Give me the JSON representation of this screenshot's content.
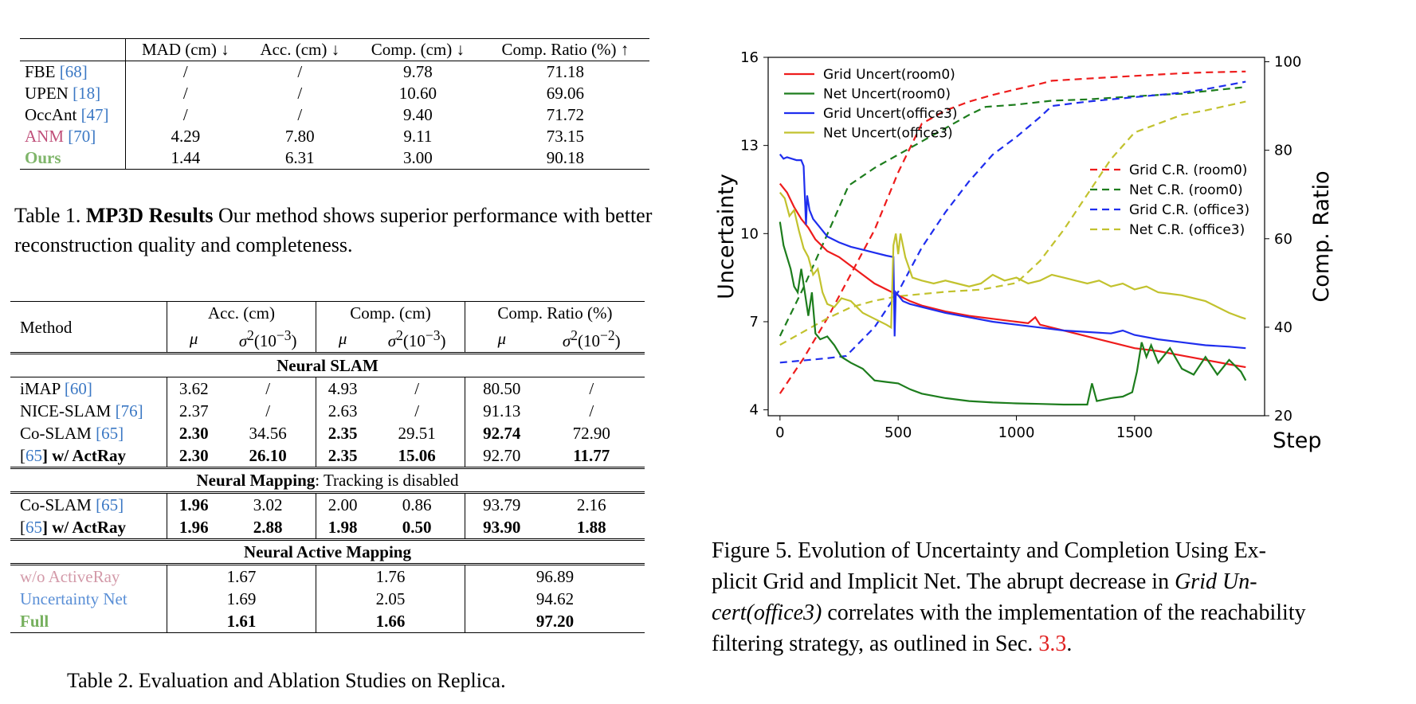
{
  "table1": {
    "headers": [
      "",
      "MAD (cm) ↓",
      "Acc. (cm) ↓",
      "Comp. (cm) ↓",
      "Comp. Ratio (%) ↑"
    ],
    "rows": [
      {
        "method": "FBE ",
        "ref": "[68]",
        "vals": [
          "/",
          "/",
          "9.78",
          "71.18"
        ]
      },
      {
        "method": "UPEN ",
        "ref": "[18]",
        "vals": [
          "/",
          "/",
          "10.60",
          "69.06"
        ]
      },
      {
        "method": "OccAnt ",
        "ref": "[47]",
        "vals": [
          "/",
          "/",
          "9.40",
          "71.72"
        ]
      },
      {
        "method": "ANM ",
        "ref": "[70]",
        "vals": [
          "4.29",
          "7.80",
          "9.11",
          "73.15"
        ]
      },
      {
        "method": "Ours",
        "ref": "",
        "vals": [
          "1.44",
          "6.31",
          "3.00",
          "90.18"
        ]
      }
    ],
    "caption_label": "Table 1. ",
    "caption_bold": "MP3D Results",
    "caption_text": " Our method shows superior performance with better reconstruction quality and completeness."
  },
  "table2": {
    "header": {
      "method": "Method",
      "acc": "Acc. (cm)",
      "comp": "Comp. (cm)",
      "ratio": "Comp. Ratio (%)",
      "mu": "μ",
      "sigma": "σ",
      "sq": "2",
      "exp3": "(10",
      "exp3b": "−3",
      "exp2b": "−2",
      "close": ")"
    },
    "sec1": "Neural SLAM",
    "sec1_rows": [
      {
        "method": "iMAP ",
        "ref": "[60]",
        "suffix": "",
        "vals": [
          "3.62",
          "/",
          "4.93",
          "/",
          "80.50",
          "/"
        ]
      },
      {
        "method": "NICE-SLAM ",
        "ref": "[76]",
        "suffix": "",
        "vals": [
          "2.37",
          "/",
          "2.63",
          "/",
          "91.13",
          "/"
        ]
      },
      {
        "method": "Co-SLAM ",
        "ref": "[65]",
        "suffix": "",
        "vals": [
          "2.30",
          "34.56",
          "2.35",
          "29.51",
          "92.74",
          "72.90"
        ]
      },
      {
        "method": "[",
        "ref": "65",
        "suffix": "] w/ ActRay",
        "vals": [
          "2.30",
          "26.10",
          "2.35",
          "15.06",
          "92.70",
          "11.77"
        ]
      }
    ],
    "sec2_bold": "Neural Mapping",
    "sec2_rest": ": Tracking is disabled",
    "sec2_rows": [
      {
        "method": "Co-SLAM ",
        "ref": "[65]",
        "suffix": "",
        "vals": [
          "1.96",
          "3.02",
          "2.00",
          "0.86",
          "93.79",
          "2.16"
        ]
      },
      {
        "method": "[",
        "ref": "65",
        "suffix": "] w/ ActRay",
        "vals": [
          "1.96",
          "2.88",
          "1.98",
          "0.50",
          "93.90",
          "1.88"
        ]
      }
    ],
    "sec3": "Neural Active Mapping",
    "sec3_rows": [
      {
        "method": "w/o ActiveRay",
        "vals": [
          "1.67",
          "1.76",
          "96.89"
        ]
      },
      {
        "method": "Uncertainty Net",
        "vals": [
          "1.69",
          "2.05",
          "94.62"
        ]
      },
      {
        "method": "Full",
        "vals": [
          "1.61",
          "1.66",
          "97.20"
        ]
      }
    ],
    "caption": "Table 2. Evaluation and Ablation Studies on Replica."
  },
  "figure5": {
    "caption_lines": [
      "Figure 5.  Evolution of Uncertainty and Completion Using Ex-",
      "plicit Grid and Implicit Net.  The abrupt decrease in ",
      "Grid Un-",
      "cert(office3)",
      " correlates with the implementation of the reachability",
      "filtering strategy, as outlined in Sec. ",
      "3.3",
      "."
    ]
  },
  "chart_data": {
    "type": "line",
    "xlabel": "Step",
    "ylabel": "Uncertainty",
    "y2label": "Comp. Ratio",
    "xlim": [
      -50,
      2050
    ],
    "ylim": [
      3.8,
      16.0
    ],
    "y2lim": [
      20,
      101
    ],
    "xticks": [
      0,
      500,
      1000,
      1500
    ],
    "yticks": [
      4,
      7,
      10,
      13,
      16
    ],
    "y2ticks": [
      20,
      40,
      60,
      80,
      100
    ],
    "legend_left_position": "top-left",
    "legend_right_position": "center-right",
    "colors": {
      "room0_grid": "#ee1c1c",
      "room0_net": "#1d7d1d",
      "office3_grid": "#1f2eee",
      "office3_net": "#c2c22e"
    },
    "uncertainty_series": [
      {
        "name": "Grid Uncert(room0)",
        "color": "#ee1c1c",
        "points": [
          [
            0,
            11.7
          ],
          [
            30,
            11.4
          ],
          [
            60,
            10.9
          ],
          [
            90,
            10.5
          ],
          [
            120,
            10.2
          ],
          [
            150,
            9.8
          ],
          [
            200,
            9.4
          ],
          [
            250,
            9.2
          ],
          [
            300,
            8.9
          ],
          [
            350,
            8.6
          ],
          [
            400,
            8.3
          ],
          [
            450,
            8.1
          ],
          [
            500,
            7.9
          ],
          [
            550,
            7.7
          ],
          [
            600,
            7.55
          ],
          [
            700,
            7.35
          ],
          [
            800,
            7.2
          ],
          [
            900,
            7.1
          ],
          [
            1000,
            7.0
          ],
          [
            1050,
            6.95
          ],
          [
            1080,
            7.15
          ],
          [
            1100,
            6.9
          ],
          [
            1200,
            6.7
          ],
          [
            1300,
            6.5
          ],
          [
            1400,
            6.3
          ],
          [
            1500,
            6.1
          ],
          [
            1600,
            6.0
          ],
          [
            1700,
            5.85
          ],
          [
            1800,
            5.7
          ],
          [
            1900,
            5.55
          ],
          [
            1970,
            5.45
          ]
        ]
      },
      {
        "name": "Net Uncert(room0)",
        "color": "#1d7d1d",
        "points": [
          [
            0,
            10.4
          ],
          [
            15,
            9.6
          ],
          [
            30,
            9.2
          ],
          [
            45,
            8.8
          ],
          [
            60,
            8.2
          ],
          [
            75,
            8.0
          ],
          [
            90,
            8.8
          ],
          [
            105,
            8.0
          ],
          [
            120,
            7.2
          ],
          [
            135,
            8.0
          ],
          [
            150,
            6.6
          ],
          [
            170,
            6.4
          ],
          [
            200,
            6.5
          ],
          [
            230,
            6.2
          ],
          [
            260,
            5.8
          ],
          [
            300,
            5.6
          ],
          [
            350,
            5.4
          ],
          [
            400,
            5.0
          ],
          [
            450,
            4.95
          ],
          [
            500,
            4.9
          ],
          [
            550,
            4.7
          ],
          [
            600,
            4.55
          ],
          [
            700,
            4.4
          ],
          [
            800,
            4.3
          ],
          [
            900,
            4.25
          ],
          [
            1000,
            4.22
          ],
          [
            1100,
            4.2
          ],
          [
            1200,
            4.18
          ],
          [
            1300,
            4.18
          ],
          [
            1320,
            4.9
          ],
          [
            1340,
            4.3
          ],
          [
            1400,
            4.4
          ],
          [
            1450,
            4.45
          ],
          [
            1490,
            4.6
          ],
          [
            1510,
            5.3
          ],
          [
            1530,
            6.3
          ],
          [
            1550,
            5.8
          ],
          [
            1570,
            6.2
          ],
          [
            1600,
            5.6
          ],
          [
            1650,
            6.1
          ],
          [
            1700,
            5.4
          ],
          [
            1750,
            5.2
          ],
          [
            1800,
            5.8
          ],
          [
            1850,
            5.2
          ],
          [
            1900,
            5.7
          ],
          [
            1950,
            5.3
          ],
          [
            1970,
            5.0
          ]
        ]
      },
      {
        "name": "Grid Uncert(office3)",
        "color": "#1f2eee",
        "points": [
          [
            0,
            12.7
          ],
          [
            15,
            12.55
          ],
          [
            30,
            12.6
          ],
          [
            50,
            12.55
          ],
          [
            70,
            12.5
          ],
          [
            90,
            12.5
          ],
          [
            100,
            12.3
          ],
          [
            110,
            10.3
          ],
          [
            115,
            11.3
          ],
          [
            125,
            10.8
          ],
          [
            140,
            10.5
          ],
          [
            170,
            10.2
          ],
          [
            200,
            9.9
          ],
          [
            250,
            9.7
          ],
          [
            300,
            9.55
          ],
          [
            350,
            9.45
          ],
          [
            400,
            9.35
          ],
          [
            450,
            9.25
          ],
          [
            480,
            9.2
          ],
          [
            485,
            6.5
          ],
          [
            490,
            8.0
          ],
          [
            520,
            7.7
          ],
          [
            550,
            7.6
          ],
          [
            600,
            7.5
          ],
          [
            700,
            7.3
          ],
          [
            800,
            7.15
          ],
          [
            900,
            7.0
          ],
          [
            1000,
            6.9
          ],
          [
            1100,
            6.8
          ],
          [
            1200,
            6.7
          ],
          [
            1300,
            6.65
          ],
          [
            1400,
            6.6
          ],
          [
            1450,
            6.7
          ],
          [
            1500,
            6.55
          ],
          [
            1600,
            6.4
          ],
          [
            1700,
            6.3
          ],
          [
            1800,
            6.2
          ],
          [
            1900,
            6.15
          ],
          [
            1970,
            6.1
          ]
        ]
      },
      {
        "name": "Net Uncert(office3)",
        "color": "#c2c22e",
        "points": [
          [
            0,
            11.4
          ],
          [
            20,
            11.2
          ],
          [
            40,
            10.6
          ],
          [
            60,
            10.8
          ],
          [
            80,
            10.1
          ],
          [
            100,
            9.5
          ],
          [
            120,
            9.2
          ],
          [
            140,
            8.6
          ],
          [
            160,
            8.8
          ],
          [
            180,
            8.0
          ],
          [
            200,
            7.6
          ],
          [
            230,
            7.5
          ],
          [
            260,
            7.8
          ],
          [
            300,
            7.7
          ],
          [
            350,
            7.3
          ],
          [
            400,
            7.1
          ],
          [
            450,
            6.9
          ],
          [
            470,
            6.8
          ],
          [
            480,
            9.6
          ],
          [
            490,
            10.0
          ],
          [
            500,
            9.3
          ],
          [
            510,
            10.0
          ],
          [
            530,
            9.2
          ],
          [
            560,
            8.5
          ],
          [
            600,
            8.4
          ],
          [
            650,
            8.3
          ],
          [
            700,
            8.4
          ],
          [
            750,
            8.3
          ],
          [
            800,
            8.2
          ],
          [
            850,
            8.3
          ],
          [
            900,
            8.6
          ],
          [
            950,
            8.4
          ],
          [
            1000,
            8.5
          ],
          [
            1050,
            8.3
          ],
          [
            1100,
            8.4
          ],
          [
            1150,
            8.6
          ],
          [
            1200,
            8.5
          ],
          [
            1250,
            8.4
          ],
          [
            1300,
            8.3
          ],
          [
            1350,
            8.4
          ],
          [
            1400,
            8.2
          ],
          [
            1450,
            8.3
          ],
          [
            1500,
            8.1
          ],
          [
            1550,
            8.2
          ],
          [
            1600,
            8.0
          ],
          [
            1650,
            7.95
          ],
          [
            1700,
            7.9
          ],
          [
            1750,
            7.8
          ],
          [
            1800,
            7.7
          ],
          [
            1850,
            7.5
          ],
          [
            1900,
            7.3
          ],
          [
            1950,
            7.15
          ],
          [
            1970,
            7.1
          ]
        ]
      }
    ],
    "ratio_series": [
      {
        "name": "Grid C.R. (room0)",
        "color": "#ee1c1c",
        "points": [
          [
            0,
            25
          ],
          [
            100,
            33
          ],
          [
            200,
            42
          ],
          [
            300,
            52
          ],
          [
            400,
            62
          ],
          [
            500,
            75
          ],
          [
            600,
            86
          ],
          [
            700,
            89
          ],
          [
            800,
            91
          ],
          [
            900,
            92.5
          ],
          [
            1000,
            93.8
          ],
          [
            1100,
            95
          ],
          [
            1150,
            95.7
          ],
          [
            1300,
            96.2
          ],
          [
            1500,
            96.8
          ],
          [
            1700,
            97.4
          ],
          [
            1800,
            97.6
          ],
          [
            1970,
            97.8
          ]
        ]
      },
      {
        "name": "Net C.R. (room0)",
        "color": "#1d7d1d",
        "points": [
          [
            0,
            38
          ],
          [
            100,
            49
          ],
          [
            200,
            61
          ],
          [
            290,
            72
          ],
          [
            400,
            76
          ],
          [
            500,
            79
          ],
          [
            600,
            82
          ],
          [
            700,
            85
          ],
          [
            800,
            88
          ],
          [
            870,
            89.8
          ],
          [
            1000,
            90.3
          ],
          [
            1150,
            91.2
          ],
          [
            1300,
            91.5
          ],
          [
            1500,
            92.2
          ],
          [
            1700,
            92.8
          ],
          [
            1970,
            94.3
          ]
        ]
      },
      {
        "name": "Grid C.R. (office3)",
        "color": "#1f2eee",
        "points": [
          [
            0,
            32
          ],
          [
            100,
            32.5
          ],
          [
            200,
            33
          ],
          [
            280,
            33.5
          ],
          [
            400,
            40
          ],
          [
            500,
            48
          ],
          [
            600,
            58
          ],
          [
            700,
            66
          ],
          [
            800,
            73
          ],
          [
            900,
            79
          ],
          [
            1000,
            83
          ],
          [
            1100,
            87.5
          ],
          [
            1150,
            90
          ],
          [
            1300,
            91
          ],
          [
            1500,
            92
          ],
          [
            1700,
            93
          ],
          [
            1800,
            93.8
          ],
          [
            1970,
            95.5
          ]
        ]
      },
      {
        "name": "Net C.R. (office3)",
        "color": "#c2c22e",
        "points": [
          [
            0,
            36
          ],
          [
            100,
            39
          ],
          [
            200,
            42
          ],
          [
            300,
            44.5
          ],
          [
            400,
            46
          ],
          [
            500,
            47
          ],
          [
            600,
            47.5
          ],
          [
            700,
            48
          ],
          [
            850,
            48.5
          ],
          [
            1000,
            50
          ],
          [
            1100,
            55
          ],
          [
            1200,
            62
          ],
          [
            1300,
            70
          ],
          [
            1400,
            78
          ],
          [
            1500,
            84
          ],
          [
            1600,
            86
          ],
          [
            1700,
            88
          ],
          [
            1800,
            89
          ],
          [
            1970,
            91
          ]
        ]
      }
    ]
  }
}
